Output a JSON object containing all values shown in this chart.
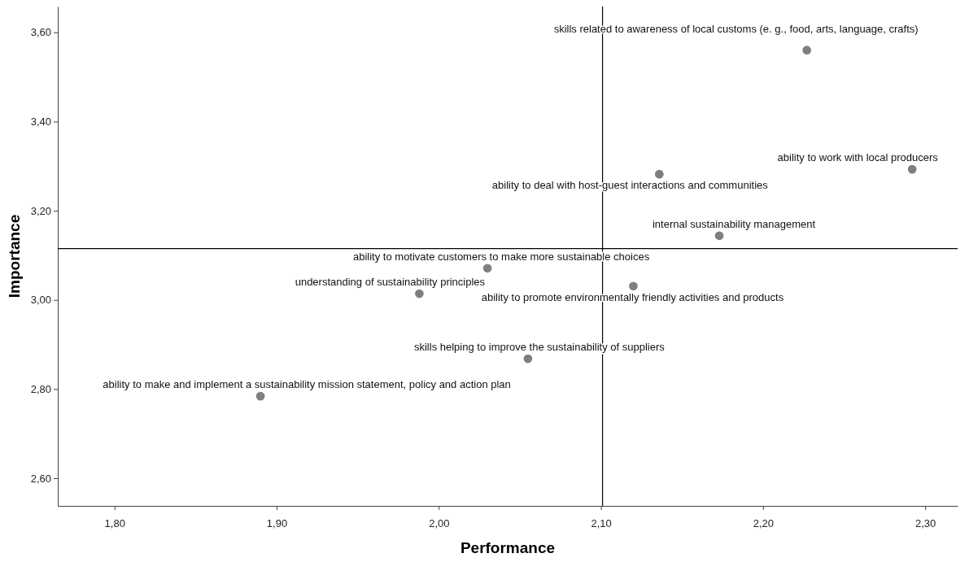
{
  "chart_data": {
    "type": "scatter",
    "xlabel": "Performance",
    "ylabel": "Importance",
    "x": [
      2.227,
      2.292,
      2.136,
      2.173,
      2.03,
      1.988,
      2.12,
      2.055,
      1.89
    ],
    "values": [
      3.56,
      3.293,
      3.282,
      3.144,
      3.071,
      3.014,
      3.031,
      2.868,
      2.784
    ],
    "color": "#7f7f7f",
    "marker": "circle",
    "grid": false,
    "xlim": [
      1.765,
      2.32
    ],
    "ylim": [
      2.538,
      3.658
    ],
    "xticks": [
      {
        "value": 1.8,
        "label": "1,80"
      },
      {
        "value": 1.9,
        "label": "1,90"
      },
      {
        "value": 2.0,
        "label": "2,00"
      },
      {
        "value": 2.1,
        "label": "2,10"
      },
      {
        "value": 2.2,
        "label": "2,20"
      },
      {
        "value": 2.3,
        "label": "2,30"
      }
    ],
    "yticks": [
      {
        "value": 2.6,
        "label": "2,60"
      },
      {
        "value": 2.8,
        "label": "2,80"
      },
      {
        "value": 3.0,
        "label": "3,00"
      },
      {
        "value": 3.2,
        "label": "3,20"
      },
      {
        "value": 3.4,
        "label": "3,40"
      },
      {
        "value": 3.6,
        "label": "3,60"
      }
    ],
    "ref_lines": [
      {
        "axis": "x",
        "value": 2.101,
        "color": "#000000"
      },
      {
        "axis": "y",
        "value": 3.115,
        "color": "#000000"
      }
    ],
    "annotations": [
      {
        "text": "skills related to awareness of local customs (e. g., food, arts, language, crafts)",
        "x": 2.227,
        "y": 3.56
      },
      {
        "text": "ability to work with local producers",
        "x": 2.292,
        "y": 3.293
      },
      {
        "text": "ability to deal with host-guest interactions and communities",
        "x": 2.136,
        "y": 3.282
      },
      {
        "text": "internal sustainability management",
        "x": 2.173,
        "y": 3.144
      },
      {
        "text": "ability to motivate customers to make more sustainable choices",
        "x": 2.03,
        "y": 3.071
      },
      {
        "text": "understanding of sustainability principles",
        "x": 1.988,
        "y": 3.014
      },
      {
        "text": "ability to promote environmentally friendly activities and products",
        "x": 2.12,
        "y": 3.031
      },
      {
        "text": "skills helping to improve the sustainability of suppliers",
        "x": 2.055,
        "y": 2.868
      },
      {
        "text": "ability to make and implement a sustainability mission statement, policy and action plan",
        "x": 1.89,
        "y": 2.784
      }
    ]
  }
}
